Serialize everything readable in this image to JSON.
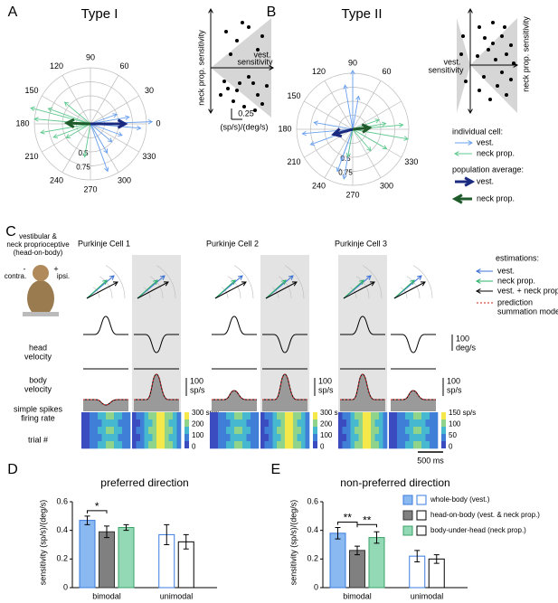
{
  "figure": {
    "A": {
      "letter": "A",
      "title": "Type I",
      "angles": [
        "90",
        "60",
        "30",
        "0",
        "330",
        "300",
        "270",
        "240",
        "210",
        "180",
        "150",
        "120"
      ],
      "radii": [
        "0.5",
        "0.75"
      ],
      "inset_y": "neck prop. sensitivity",
      "inset_x": [
        "vest.",
        "sensitivity"
      ],
      "scale": "0.25",
      "scale_unit": "(sp/s)/(deg/s)"
    },
    "B": {
      "letter": "B",
      "title": "Type II",
      "angles": [
        "90",
        "60",
        "330",
        "300",
        "270",
        "240",
        "210",
        "180",
        "150",
        "120"
      ],
      "radii": [
        "0.5",
        "0.75"
      ],
      "inset_y": "neck prop. sensitivity",
      "inset_x": [
        "vest.",
        "sensitivity"
      ]
    },
    "legend_ab": {
      "individual": "individual cell:",
      "ind_items": [
        "vest.",
        "neck prop."
      ],
      "average": "population average:",
      "avg_items": [
        "vest.",
        "neck prop."
      ]
    },
    "C": {
      "letter": "C",
      "stimulus": [
        "vestibular &",
        "neck proprioceptive",
        "(head-on-body)"
      ],
      "signs": [
        "-",
        "+"
      ],
      "sides": [
        "contra.",
        "ipsi."
      ],
      "rows": [
        "head",
        "velocity",
        "body",
        "velocity",
        "simple spikes",
        "firing rate",
        "trial #"
      ],
      "cells": [
        {
          "name": "Purkinje Cell 1",
          "rate_scale": [
            "100",
            "sp/s"
          ],
          "colorbar": [
            "300 sp/s",
            "200",
            "100",
            "0"
          ]
        },
        {
          "name": "Purkinje Cell 2",
          "rate_scale": [
            "100",
            "sp/s"
          ],
          "colorbar": [
            "300 sp/s",
            "200",
            "100",
            "0"
          ]
        },
        {
          "name": "Purkinje Cell 3",
          "rate_scale": [
            "100",
            "sp/s"
          ],
          "colorbar": [
            "150 sp/s",
            "100",
            "50",
            "0"
          ]
        }
      ],
      "velocity_scale": [
        "100",
        "deg/s"
      ],
      "time_scale": "500 ms",
      "estimations": {
        "title": "estimations:",
        "items": [
          "vest.",
          "neck prop.",
          "vest. + neck prop."
        ],
        "prediction": [
          "prediction",
          "summation model"
        ]
      }
    }
  },
  "chart_data": [
    {
      "type": "bar",
      "letter": "D",
      "title": "preferred direction",
      "ylabel": "sensitivity (sp/s)/(deg/s)",
      "categories": [
        "bimodal",
        "unimodal"
      ],
      "series": [
        {
          "name": "whole-body (vest.)",
          "color": "#8ab8f0",
          "values": [
            0.47,
            0.37
          ],
          "errors": [
            0.03,
            0.07
          ]
        },
        {
          "name": "head-on-body (vest. & neck prop.)",
          "color": "#808080",
          "values": [
            0.39,
            0.32
          ],
          "errors": [
            0.04,
            0.05
          ]
        },
        {
          "name": "body-under-head (neck prop.)",
          "color": "#93d9b5",
          "values": [
            0.42,
            null
          ],
          "errors": [
            0.02,
            null
          ]
        }
      ],
      "ylim": [
        0,
        0.6
      ],
      "yticks": [
        0,
        0.2,
        0.4,
        0.6
      ],
      "annotations": [
        {
          "label": "*",
          "between": [
            0,
            1
          ]
        }
      ]
    },
    {
      "type": "bar",
      "letter": "E",
      "title": "non-preferred direction",
      "ylabel": "sensitivity (sp/s)/(deg/s)",
      "categories": [
        "bimodal",
        "unimodal"
      ],
      "series": [
        {
          "name": "whole-body (vest.)",
          "color": "#8ab8f0",
          "values": [
            0.38,
            0.22
          ],
          "errors": [
            0.04,
            0.04
          ]
        },
        {
          "name": "head-on-body (vest. & neck prop.)",
          "color": "#808080",
          "values": [
            0.26,
            0.2
          ],
          "errors": [
            0.03,
            0.03
          ]
        },
        {
          "name": "body-under-head (neck prop.)",
          "color": "#93d9b5",
          "values": [
            0.35,
            null
          ],
          "errors": [
            0.04,
            null
          ]
        }
      ],
      "ylim": [
        0,
        0.6
      ],
      "yticks": [
        0,
        0.2,
        0.4,
        0.6
      ],
      "legend": "upper right",
      "annotations": [
        {
          "label": "**",
          "between": [
            0,
            1
          ]
        },
        {
          "label": "**",
          "between": [
            1,
            2
          ]
        }
      ]
    }
  ]
}
